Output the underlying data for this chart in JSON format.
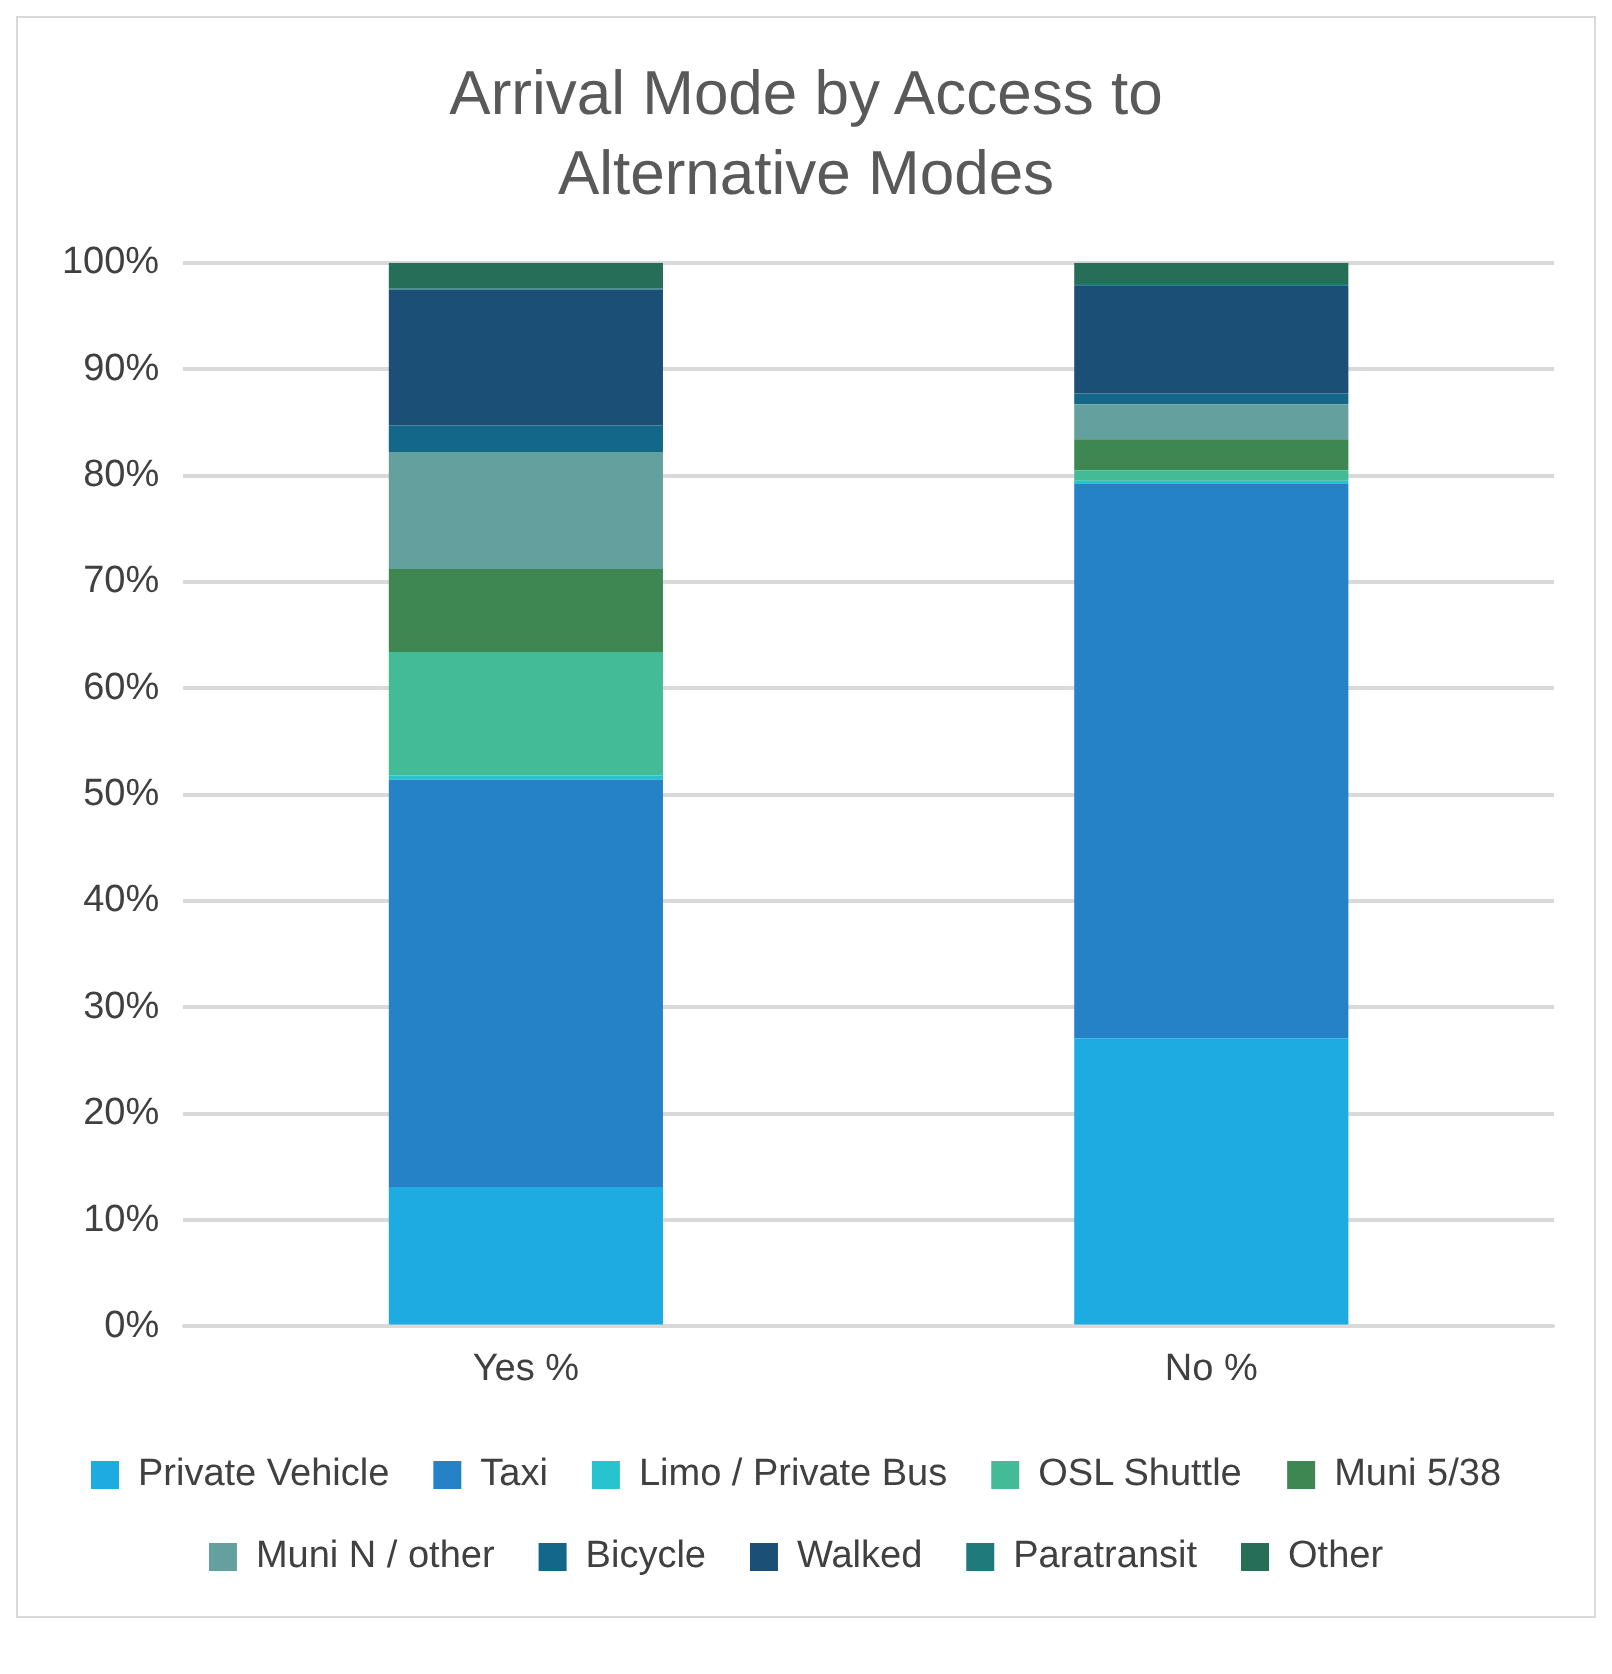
{
  "chart_data": {
    "type": "bar",
    "title": "Arrival Mode by Access to Alternative Modes",
    "categories": [
      "Yes %",
      "No %"
    ],
    "stacked": true,
    "series": [
      {
        "name": "Private Vehicle",
        "color": "#1eabe2",
        "values": [
          13.1,
          27.1
        ]
      },
      {
        "name": "Taxi",
        "color": "#2682c6",
        "values": [
          38.3,
          52.1
        ]
      },
      {
        "name": "Limo / Private Bus",
        "color": "#27c4cf",
        "values": [
          0.4,
          0.3
        ]
      },
      {
        "name": "OSL Shuttle",
        "color": "#43bb96",
        "values": [
          11.6,
          1.0
        ]
      },
      {
        "name": "Muni 5/38",
        "color": "#3e8752",
        "values": [
          7.8,
          2.9
        ]
      },
      {
        "name": "Muni N / other",
        "color": "#64a19e",
        "values": [
          11.0,
          3.3
        ]
      },
      {
        "name": "Bicycle",
        "color": "#136889",
        "values": [
          2.5,
          1.0
        ]
      },
      {
        "name": "Walked",
        "color": "#1b4f75",
        "values": [
          12.8,
          10.2
        ]
      },
      {
        "name": "Paratransit",
        "color": "#1f7b7b",
        "values": [
          0.1,
          0.1
        ]
      },
      {
        "name": "Other",
        "color": "#266e58",
        "values": [
          2.4,
          2.0
        ]
      }
    ],
    "ylim": [
      0,
      100
    ],
    "yticks": [
      {
        "value": 0,
        "label": "0%"
      },
      {
        "value": 10,
        "label": "10%"
      },
      {
        "value": 20,
        "label": "20%"
      },
      {
        "value": 30,
        "label": "30%"
      },
      {
        "value": 40,
        "label": "40%"
      },
      {
        "value": 50,
        "label": "50%"
      },
      {
        "value": 60,
        "label": "60%"
      },
      {
        "value": 70,
        "label": "70%"
      },
      {
        "value": 80,
        "label": "80%"
      },
      {
        "value": 90,
        "label": "90%"
      },
      {
        "value": 100,
        "label": "100%"
      }
    ],
    "grid": "y",
    "legend": "bottom"
  }
}
